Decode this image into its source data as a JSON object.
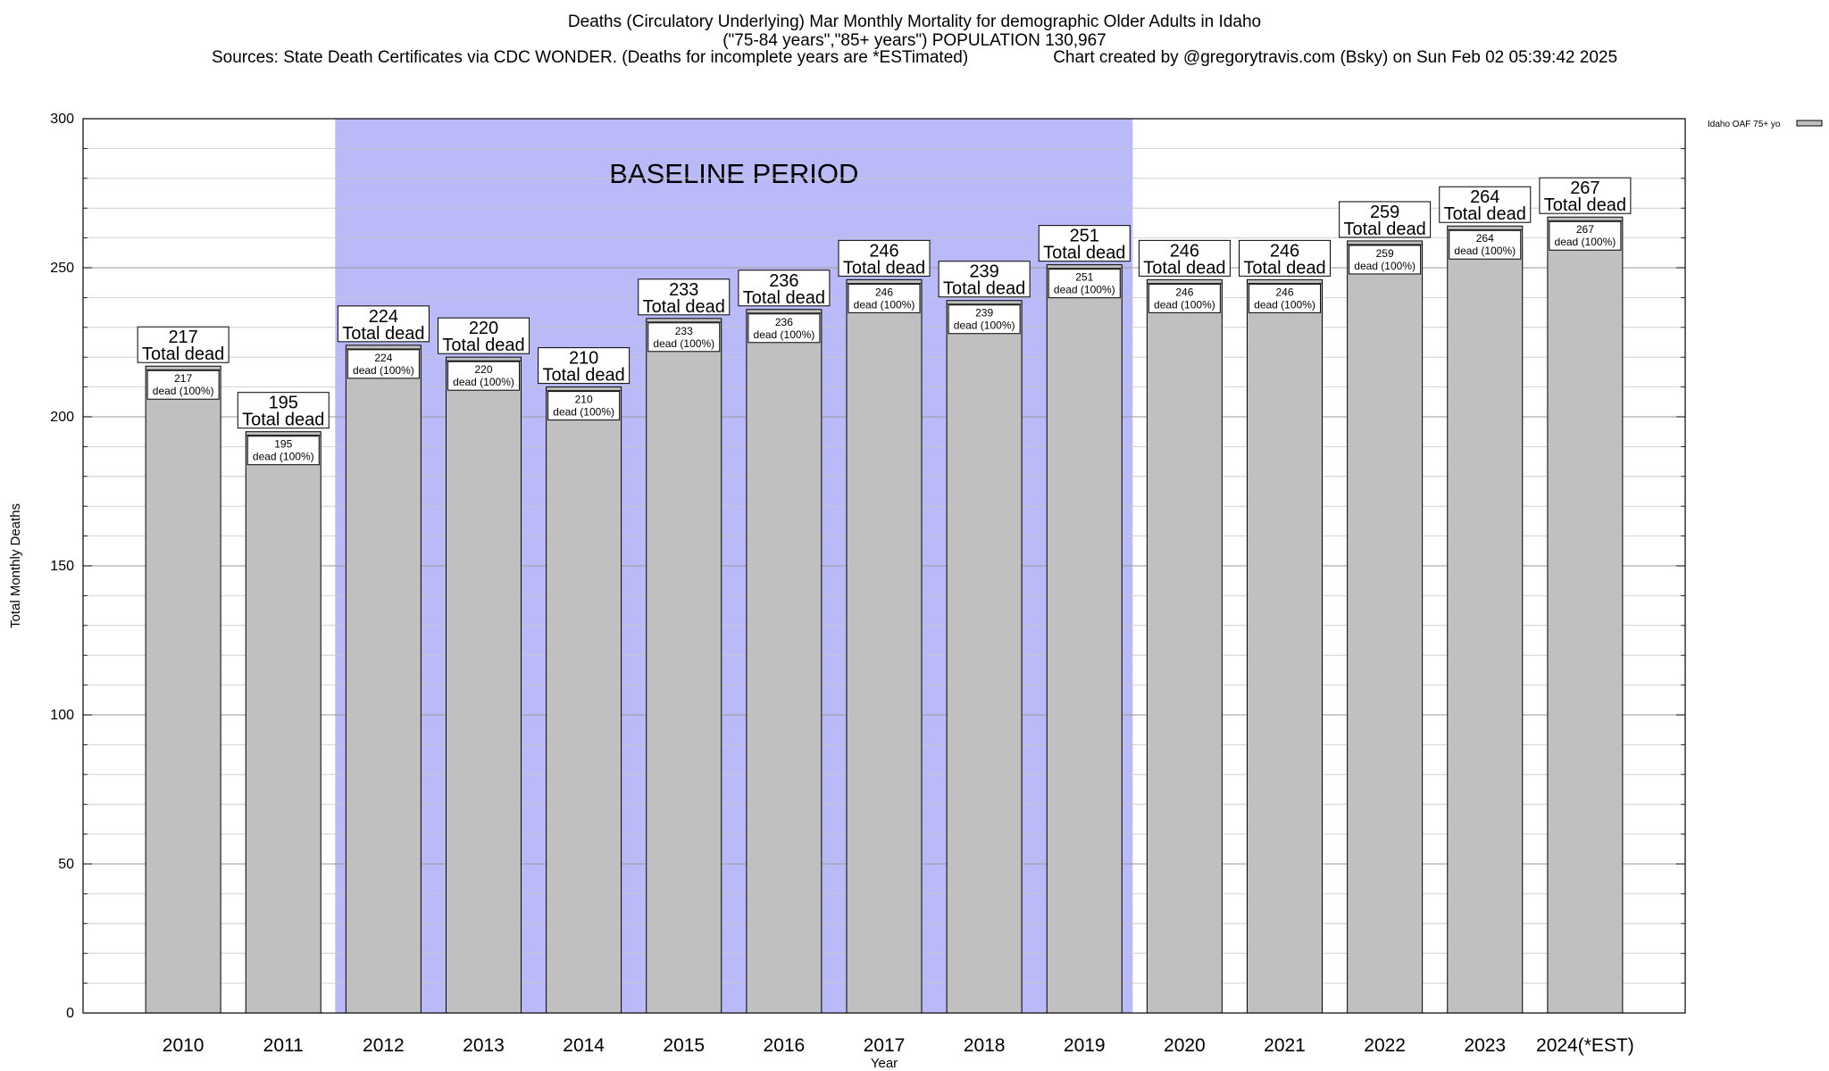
{
  "chart_data": {
    "type": "bar",
    "title_lines": [
      "Deaths (Circulatory Underlying) Mar Monthly Mortality for demographic Older Adults in Idaho",
      "(\"75-84 years\",\"85+ years\") POPULATION 130,967"
    ],
    "sources": "Sources: State Death Certificates via CDC WONDER. (Deaths for incomplete years are *ESTimated)",
    "credit": "Chart created by @gregorytravis.com (Bsky) on Sun Feb 02 05:39:42 2025",
    "xlabel": "Year",
    "ylabel": "Total Monthly Deaths",
    "ylim": [
      0,
      300
    ],
    "yticks": [
      0,
      50,
      100,
      150,
      200,
      250,
      300
    ],
    "minor_step": 10,
    "categories": [
      "2010",
      "2011",
      "2012",
      "2013",
      "2014",
      "2015",
      "2016",
      "2017",
      "2018",
      "2019",
      "2020",
      "2021",
      "2022",
      "2023",
      "2024(*EST)"
    ],
    "series": [
      {
        "name": "Idaho OAF 75+ yo",
        "color": "#c0c0c0",
        "values": [
          217,
          195,
          224,
          220,
          210,
          233,
          236,
          246,
          239,
          251,
          246,
          246,
          259,
          264,
          267
        ]
      }
    ],
    "outer_label_suffix": "Total dead",
    "inner_label_suffix": "dead (100%)",
    "baseline": {
      "label": "BASELINE PERIOD",
      "start": "2012",
      "end": "2019",
      "color": "#babaf8"
    },
    "legend_position": "top-right"
  }
}
